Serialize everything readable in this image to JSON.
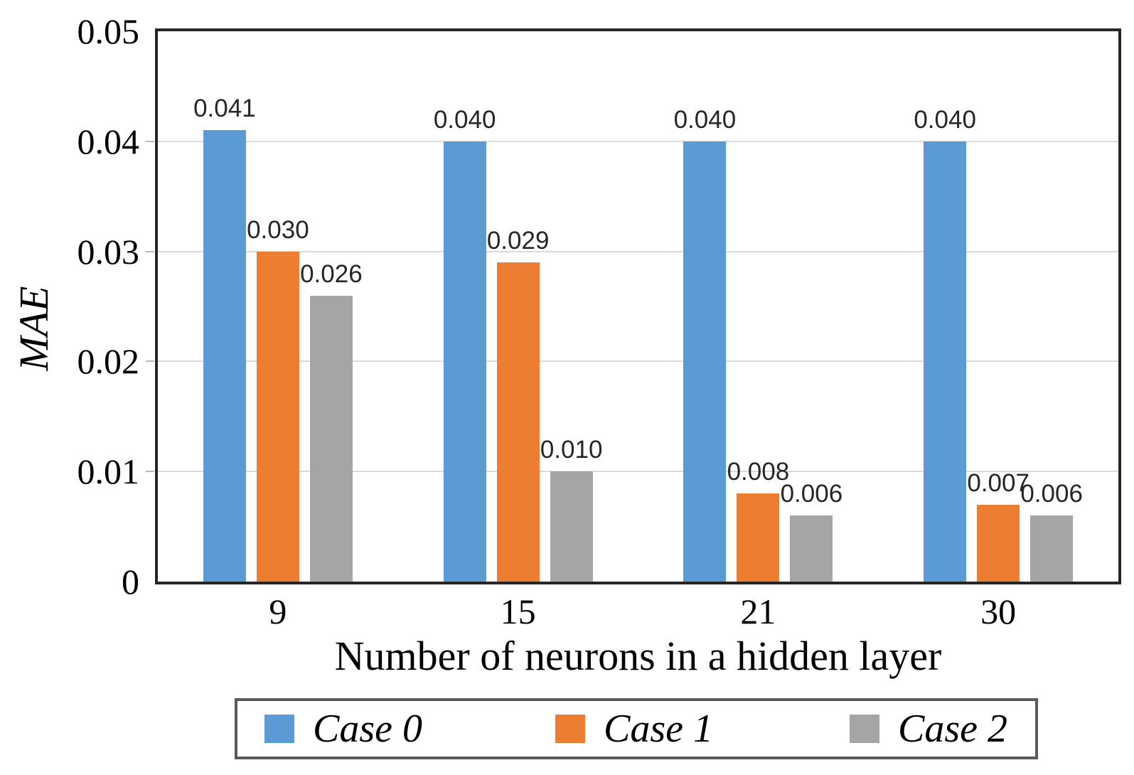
{
  "chart_data": {
    "type": "bar",
    "title": "",
    "xlabel": "Number of neurons in a hidden layer",
    "ylabel": "MAE",
    "categories": [
      "9",
      "15",
      "21",
      "30"
    ],
    "series": [
      {
        "name": "Case 0",
        "color": "#5B9BD5",
        "values": [
          0.041,
          0.04,
          0.04,
          0.04
        ]
      },
      {
        "name": "Case 1",
        "color": "#ED7D31",
        "values": [
          0.03,
          0.029,
          0.008,
          0.007
        ]
      },
      {
        "name": "Case 2",
        "color": "#A5A5A5",
        "values": [
          0.026,
          0.01,
          0.006,
          0.006
        ]
      }
    ],
    "value_labels": [
      [
        "0.041",
        "0.040",
        "0.040",
        "0.040"
      ],
      [
        "0.030",
        "0.029",
        "0.008",
        "0.007"
      ],
      [
        "0.026",
        "0.010",
        "0.006",
        "0.006"
      ]
    ],
    "ylim": [
      0,
      0.05
    ],
    "yticks": [
      "0.05",
      "0.04",
      "0.03",
      "0.02",
      "0.01",
      "0"
    ],
    "grid": true,
    "legend_position": "bottom",
    "legend_labels": [
      "Case 0",
      "Case 1",
      "Case 2"
    ]
  },
  "colors": {
    "axis_border": "#262626",
    "gridline": "#d9d9d9",
    "legend_border": "#595959",
    "value_label_text": "#262626"
  }
}
